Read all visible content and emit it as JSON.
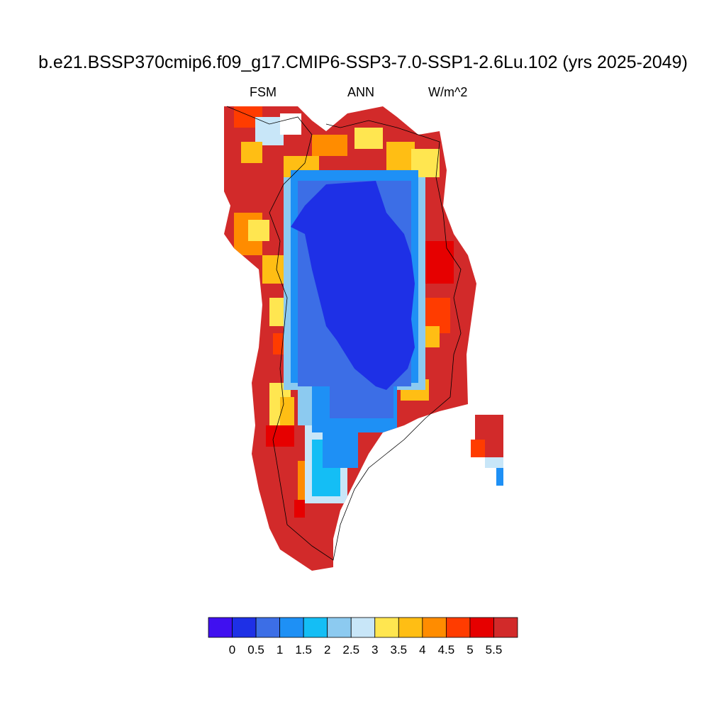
{
  "title": "b.e21.BSSP370cmip6.f09_g17.CMIP6-SSP3-7.0-SSP1-2.6Lu.102 (yrs 2025-2049)",
  "subtitle_left": "FSM",
  "subtitle_center": "ANN",
  "subtitle_right": "W/m^2",
  "colorbar": {
    "colors": [
      "#4010f0",
      "#1e30e6",
      "#3c6ee6",
      "#1e90f5",
      "#14bef5",
      "#8ccaf0",
      "#c8e6f8",
      "#ffe650",
      "#ffbe14",
      "#ff8c00",
      "#ff3c00",
      "#e60000",
      "#d22a2a"
    ],
    "labels": [
      "0",
      "0.5",
      "1",
      "1.5",
      "2",
      "2.5",
      "3",
      "3.5",
      "4",
      "4.5",
      "5",
      "5.5"
    ]
  },
  "map": {
    "region": "Greenland",
    "color_pattern": "interior 0.5-1 W/m^2 (blue), coastal margins 3-5.5+ W/m^2 (yellow to red)"
  }
}
